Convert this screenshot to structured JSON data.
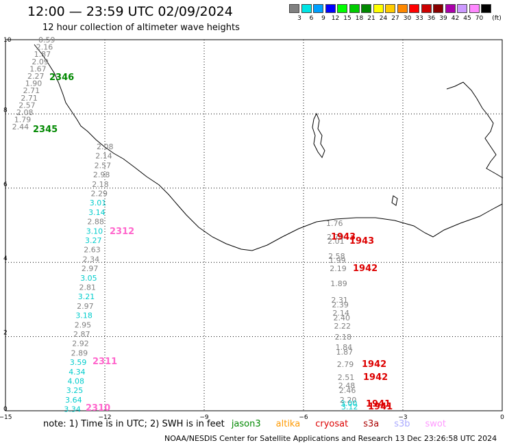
{
  "header": {
    "title": "12:00 — 23:59 UTC 02/09/2024",
    "subtitle": "12 hour collection of altimeter wave heights"
  },
  "legend": {
    "unit": "(ft)",
    "items": [
      {
        "label": "3",
        "color": "#808080"
      },
      {
        "label": "6",
        "color": "#00e5e5"
      },
      {
        "label": "9",
        "color": "#00a0ff"
      },
      {
        "label": "12",
        "color": "#0000ff"
      },
      {
        "label": "15",
        "color": "#00ff00"
      },
      {
        "label": "18",
        "color": "#00cc00"
      },
      {
        "label": "21",
        "color": "#008800"
      },
      {
        "label": "24",
        "color": "#ffff00"
      },
      {
        "label": "27",
        "color": "#ffcc00"
      },
      {
        "label": "30",
        "color": "#ff8800"
      },
      {
        "label": "33",
        "color": "#ff0000"
      },
      {
        "label": "36",
        "color": "#cc0000"
      },
      {
        "label": "39",
        "color": "#880000"
      },
      {
        "label": "42",
        "color": "#aa00aa"
      },
      {
        "label": "45",
        "color": "#cc99ff"
      },
      {
        "label": "70",
        "color": "#ff88ff"
      },
      {
        "label": "",
        "color": "#000000"
      }
    ]
  },
  "map": {
    "x_ticks": [
      "−15",
      "−12",
      "−9",
      "−6",
      "−3",
      "0"
    ],
    "y_ticks": [
      "10",
      "8",
      "6",
      "4",
      "2",
      "0"
    ],
    "track_left": [
      {
        "v": "0.59",
        "c": "#808080"
      },
      {
        "v": "2.16",
        "c": "#808080"
      },
      {
        "v": "1.87",
        "c": "#808080"
      },
      {
        "v": "2.09",
        "c": "#808080"
      },
      {
        "v": "1.67",
        "c": "#808080"
      },
      {
        "v": "2.27",
        "c": "#808080"
      },
      {
        "v": "1.90",
        "c": "#808080"
      },
      {
        "v": "2.71",
        "c": "#808080"
      },
      {
        "v": "2.71",
        "c": "#808080"
      },
      {
        "v": "2.57",
        "c": "#808080"
      },
      {
        "v": "2.08",
        "c": "#808080"
      },
      {
        "v": "1.79",
        "c": "#808080"
      },
      {
        "v": "2.44",
        "c": "#808080"
      }
    ],
    "track_mid": [
      {
        "v": "2.08",
        "c": "#808080"
      },
      {
        "v": "2.14",
        "c": "#808080"
      },
      {
        "v": "2.57",
        "c": "#808080"
      },
      {
        "v": "2.98",
        "c": "#808080"
      },
      {
        "v": "2.18",
        "c": "#808080"
      },
      {
        "v": "2.29",
        "c": "#808080"
      },
      {
        "v": "3.01",
        "c": "#00cccc"
      },
      {
        "v": "3.14",
        "c": "#00cccc"
      },
      {
        "v": "2.88",
        "c": "#808080"
      },
      {
        "v": "3.10",
        "c": "#00cccc"
      },
      {
        "v": "3.27",
        "c": "#00cccc"
      },
      {
        "v": "2.63",
        "c": "#808080"
      },
      {
        "v": "2.34",
        "c": "#808080"
      },
      {
        "v": "2.97",
        "c": "#808080"
      },
      {
        "v": "3.05",
        "c": "#00cccc"
      },
      {
        "v": "2.81",
        "c": "#808080"
      },
      {
        "v": "3.21",
        "c": "#00cccc"
      },
      {
        "v": "2.97",
        "c": "#808080"
      },
      {
        "v": "3.18",
        "c": "#00cccc"
      },
      {
        "v": "2.95",
        "c": "#808080"
      },
      {
        "v": "2.87",
        "c": "#808080"
      },
      {
        "v": "2.92",
        "c": "#808080"
      },
      {
        "v": "2.89",
        "c": "#808080"
      },
      {
        "v": "3.59",
        "c": "#00cccc"
      },
      {
        "v": "4.34",
        "c": "#00cccc"
      },
      {
        "v": "4.08",
        "c": "#00cccc"
      },
      {
        "v": "3.25",
        "c": "#00cccc"
      },
      {
        "v": "3.64",
        "c": "#00cccc"
      },
      {
        "v": "3.34",
        "c": "#00cccc"
      }
    ],
    "track_right": [
      {
        "v": "1.76",
        "c": "#808080"
      },
      {
        "v": "2.70",
        "c": "#808080"
      },
      {
        "v": "2.01",
        "c": "#808080"
      },
      {
        "v": "2.58",
        "c": "#808080"
      },
      {
        "v": "1.99",
        "c": "#808080"
      },
      {
        "v": "2.19",
        "c": "#808080"
      },
      {
        "v": "1.89",
        "c": "#808080"
      },
      {
        "v": "2.31",
        "c": "#808080"
      },
      {
        "v": "2.39",
        "c": "#808080"
      },
      {
        "v": "2.14",
        "c": "#808080"
      },
      {
        "v": "2.40",
        "c": "#808080"
      },
      {
        "v": "2.22",
        "c": "#808080"
      },
      {
        "v": "2.18",
        "c": "#808080"
      },
      {
        "v": "1.84",
        "c": "#808080"
      },
      {
        "v": "1.87",
        "c": "#808080"
      },
      {
        "v": "2.79",
        "c": "#808080"
      },
      {
        "v": "2.51",
        "c": "#808080"
      },
      {
        "v": "2.48",
        "c": "#808080"
      },
      {
        "v": "2.46",
        "c": "#808080"
      },
      {
        "v": "2.20",
        "c": "#808080"
      },
      {
        "v": "3.00",
        "c": "#00cccc"
      },
      {
        "v": "3.12",
        "c": "#00cccc"
      }
    ],
    "time_labels": [
      {
        "t": "2346",
        "c": "#008800"
      },
      {
        "t": "2345",
        "c": "#008800"
      },
      {
        "t": "2312",
        "c": "#ff66cc"
      },
      {
        "t": "2311",
        "c": "#ff66cc"
      },
      {
        "t": "2310",
        "c": "#ff66cc"
      },
      {
        "t": "1943",
        "c": "#dd0000"
      },
      {
        "t": "1943",
        "c": "#dd0000"
      },
      {
        "t": "1942",
        "c": "#dd0000"
      },
      {
        "t": "1942",
        "c": "#dd0000"
      },
      {
        "t": "1942",
        "c": "#dd0000"
      },
      {
        "t": "1941",
        "c": "#dd0000"
      },
      {
        "t": "1941",
        "c": "#dd0000"
      }
    ]
  },
  "note": {
    "prefix": "note:  1) Time is in UTC; 2) SWH is in feet",
    "satellites": [
      {
        "name": "jason3",
        "color": "#008800"
      },
      {
        "name": "altika",
        "color": "#ff9900"
      },
      {
        "name": "cryosat",
        "color": "#dd0000"
      },
      {
        "name": "s3a",
        "color": "#aa0000"
      },
      {
        "name": "s3b",
        "color": "#aaaaff"
      },
      {
        "name": "swot",
        "color": "#ff99ff"
      }
    ]
  },
  "footer": {
    "credit": "NOAA/NESDIS Center for Satellite Applications and Research    13 Dec 23:26:58 UTC 2024"
  }
}
